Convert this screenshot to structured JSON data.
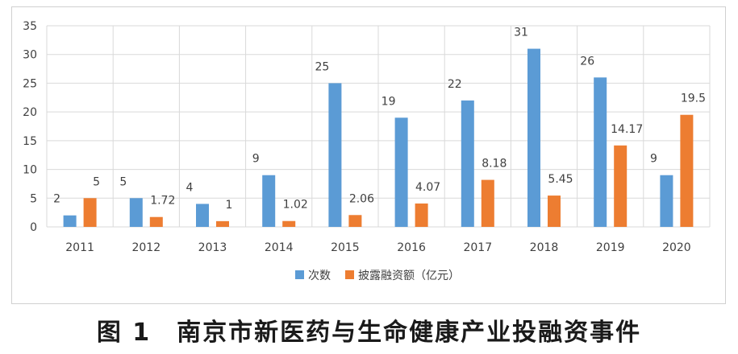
{
  "caption": "图 1　南京市新医药与生命健康产业投融资事件",
  "chart_data": {
    "type": "bar",
    "title": "",
    "xlabel": "",
    "ylabel": "",
    "categories": [
      "2011",
      "2012",
      "2013",
      "2014",
      "2015",
      "2016",
      "2017",
      "2018",
      "2019",
      "2020"
    ],
    "series": [
      {
        "name": "次数",
        "color": "#5b9bd5",
        "values": [
          2,
          5,
          4,
          9,
          25,
          19,
          22,
          31,
          26,
          9
        ],
        "labels": [
          "2",
          "5",
          "4",
          "9",
          "25",
          "19",
          "22",
          "31",
          "26",
          "9"
        ]
      },
      {
        "name": "披露融资额（亿元）",
        "color": "#ed7d31",
        "values": [
          5,
          1.72,
          1,
          1.02,
          2.06,
          4.07,
          8.18,
          5.45,
          14.17,
          19.5
        ],
        "labels": [
          "5",
          "1.72",
          "1",
          "1.02",
          "2.06",
          "4.07",
          "8.18",
          "5.45",
          "14.17",
          "19.5"
        ]
      }
    ],
    "ylim": [
      0,
      35
    ],
    "yticks": [
      "0",
      "5",
      "10",
      "15",
      "20",
      "25",
      "30",
      "35"
    ],
    "grid": true,
    "legend_position": "bottom"
  }
}
